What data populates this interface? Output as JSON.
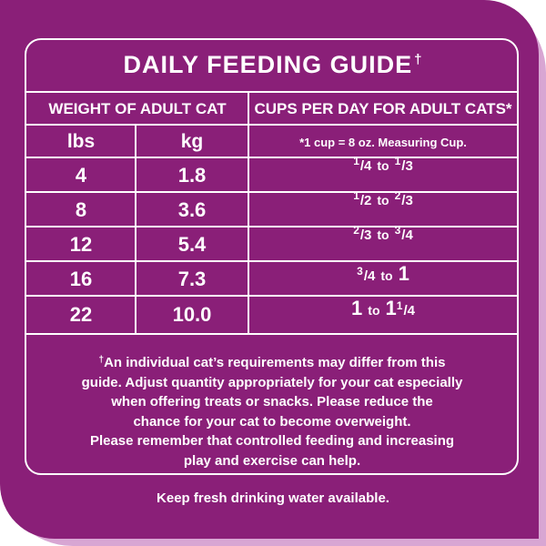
{
  "title": "DAILY FEEDING GUIDE",
  "title_mark": "†",
  "headers": {
    "weight": "WEIGHT OF ADULT CAT",
    "cups": "CUPS PER DAY FOR ADULT CATS*"
  },
  "subheaders": {
    "lbs": "lbs",
    "kg": "kg",
    "note": "*1 cup = 8 oz. Measuring Cup."
  },
  "rows": [
    {
      "lbs": "4",
      "kg": "1.8",
      "from_n": "1",
      "from_d": "4",
      "to_n": "1",
      "to_d": "3"
    },
    {
      "lbs": "8",
      "kg": "3.6",
      "from_n": "1",
      "from_d": "2",
      "to_n": "2",
      "to_d": "3"
    },
    {
      "lbs": "12",
      "kg": "5.4",
      "from_n": "2",
      "from_d": "3",
      "to_n": "3",
      "to_d": "4"
    },
    {
      "lbs": "16",
      "kg": "7.3",
      "from_n": "3",
      "from_d": "4",
      "to_whole": "1"
    },
    {
      "lbs": "22",
      "kg": "10.0",
      "from_whole": "1",
      "to_whole": "1",
      "to_n": "1",
      "to_d": "4"
    }
  ],
  "to_word": "to",
  "note_mark": "†",
  "note_lines": [
    "An individual cat’s requirements may differ from this",
    "guide. Adjust quantity appropriately for your cat especially",
    "when offering treats or snacks. Please reduce the",
    "chance for your cat to become overweight.",
    "Please remember that controlled feeding and increasing",
    "play and exercise can help."
  ],
  "water": "Keep fresh drinking water available.",
  "colors": {
    "purple": "#8a1f78",
    "lilac_border": "#d8a6d3",
    "text": "#ffffff"
  }
}
